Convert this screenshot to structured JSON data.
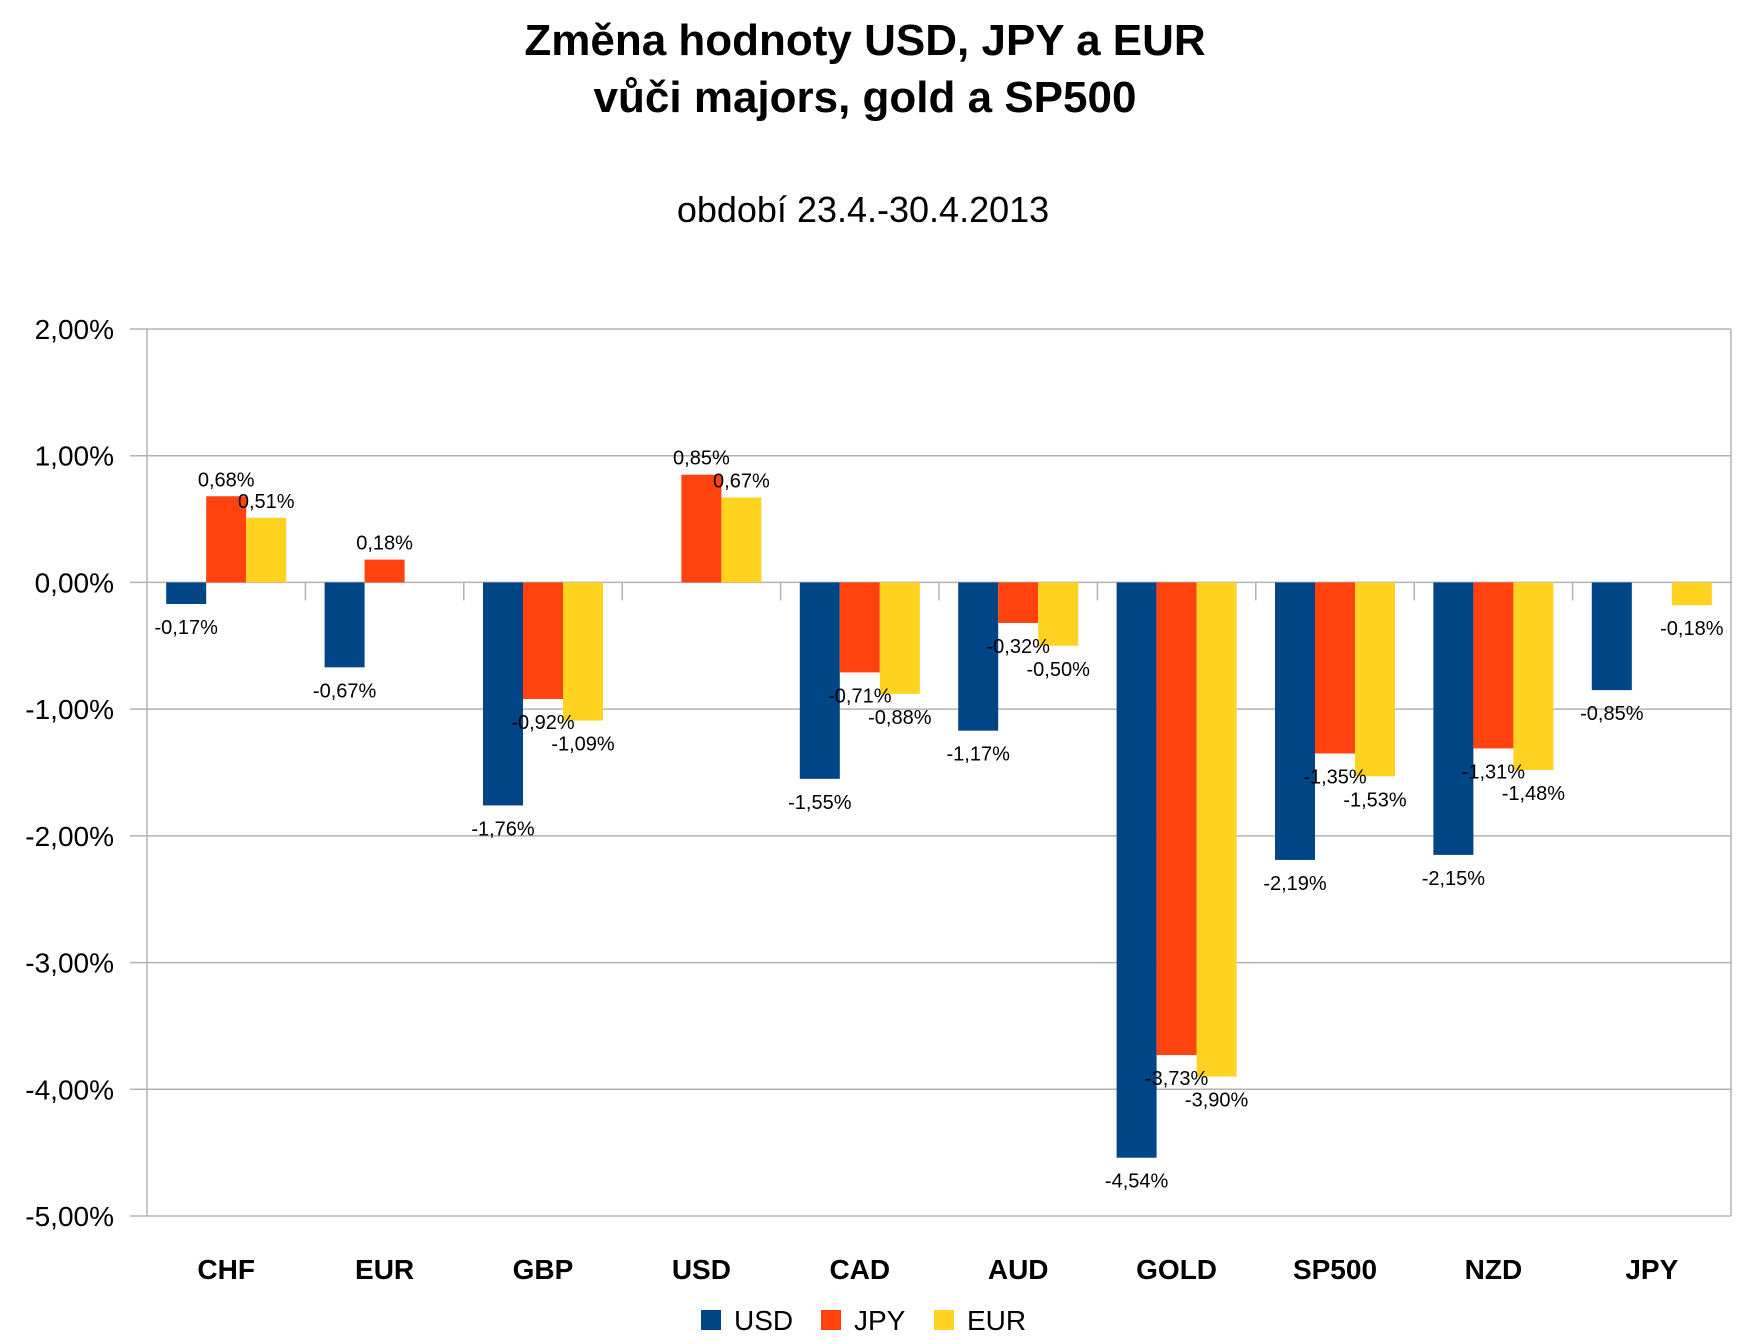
{
  "chart_data": {
    "type": "bar",
    "title": [
      "Změna hodnoty USD, JPY a EUR",
      "vůči majors, gold a SP500"
    ],
    "subtitle": "období 23.4.-30.4.2013",
    "xlabel": "",
    "ylabel": "",
    "ylim": [
      -5,
      2
    ],
    "yticks": [
      2,
      1,
      0,
      -1,
      -2,
      -3,
      -4,
      -5
    ],
    "ytick_labels": [
      "2,00%",
      "1,00%",
      "0,00%",
      "-1,00%",
      "-2,00%",
      "-3,00%",
      "-4,00%",
      "-5,00%"
    ],
    "grid": true,
    "legend_position": "bottom",
    "categories": [
      "CHF",
      "EUR",
      "GBP",
      "USD",
      "CAD",
      "AUD",
      "GOLD",
      "SP500",
      "NZD",
      "JPY"
    ],
    "series": [
      {
        "name": "USD",
        "color": "#004586",
        "values": [
          -0.17,
          -0.67,
          -1.76,
          null,
          -1.55,
          -1.17,
          -4.54,
          -2.19,
          -2.15,
          -0.85
        ],
        "labels": [
          "-0,17%",
          "-0,67%",
          "-1,76%",
          null,
          "-1,55%",
          "-1,17%",
          "-4,54%",
          "-2,19%",
          "-2,15%",
          "-0,85%"
        ]
      },
      {
        "name": "JPY",
        "color": "#ff420e",
        "values": [
          0.68,
          0.18,
          -0.92,
          0.85,
          -0.71,
          -0.32,
          -3.73,
          -1.35,
          -1.31,
          null
        ],
        "labels": [
          "0,68%",
          "0,18%",
          "-0,92%",
          "0,85%",
          "-0,71%",
          "-0,32%",
          "-3,73%",
          "-1,35%",
          "-1,31%",
          null
        ]
      },
      {
        "name": "EUR",
        "color": "#ffd320",
        "values": [
          0.51,
          null,
          -1.09,
          0.67,
          -0.88,
          -0.5,
          -3.9,
          -1.53,
          -1.48,
          -0.18
        ],
        "labels": [
          "0,51%",
          null,
          "-1,09%",
          "0,67%",
          "-0,88%",
          "-0,50%",
          "-3,90%",
          "-1,53%",
          "-1,48%",
          "-0,18%"
        ]
      }
    ]
  }
}
